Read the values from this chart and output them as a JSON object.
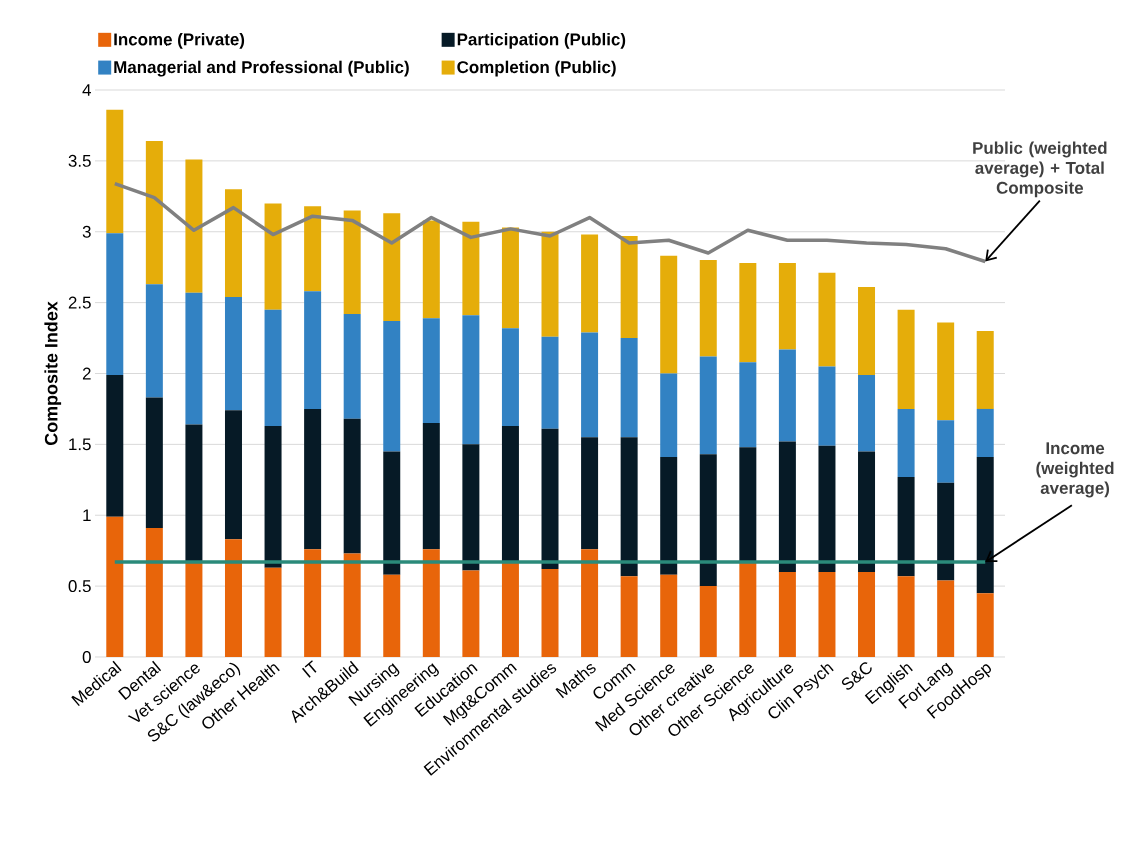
{
  "chart_data": {
    "type": "bar",
    "stacked": true,
    "ylabel": "Composite Index",
    "categories": [
      "Medical",
      "Dental",
      "Vet science",
      "S&C (law&eco)",
      "Other Health",
      "IT",
      "Arch&Build",
      "Nursing",
      "Engineering",
      "Education",
      "Mgt&Comm",
      "Environmental studies",
      "Maths",
      "Comm",
      "Med Science",
      "Other creative",
      "Other Science",
      "Agriculture",
      "Clin Psych",
      "S&C",
      "English",
      "ForLang",
      "FoodHosp"
    ],
    "series": [
      {
        "name": "Income (Private)",
        "color": "#e8650a",
        "values": [
          0.99,
          0.91,
          0.67,
          0.83,
          0.63,
          0.76,
          0.73,
          0.58,
          0.76,
          0.61,
          0.67,
          0.62,
          0.76,
          0.57,
          0.58,
          0.5,
          0.67,
          0.6,
          0.6,
          0.6,
          0.57,
          0.54,
          0.45
        ]
      },
      {
        "name": "Participation (Public)",
        "color": "#061a26",
        "values": [
          1.0,
          0.92,
          0.97,
          0.91,
          1.0,
          0.99,
          0.95,
          0.87,
          0.89,
          0.89,
          0.96,
          0.99,
          0.79,
          0.98,
          0.83,
          0.93,
          0.81,
          0.92,
          0.89,
          0.85,
          0.7,
          0.69,
          0.96
        ]
      },
      {
        "name": "Managerial and Professional (Public)",
        "color": "#3282c3",
        "values": [
          1.0,
          0.8,
          0.93,
          0.8,
          0.82,
          0.83,
          0.74,
          0.92,
          0.74,
          0.91,
          0.69,
          0.65,
          0.74,
          0.7,
          0.59,
          0.69,
          0.6,
          0.65,
          0.56,
          0.54,
          0.48,
          0.44,
          0.34
        ]
      },
      {
        "name": "Completion (Public)",
        "color": "#e5ad0a",
        "values": [
          0.87,
          1.01,
          0.94,
          0.76,
          0.75,
          0.6,
          0.73,
          0.76,
          0.69,
          0.66,
          0.71,
          0.74,
          0.69,
          0.72,
          0.83,
          0.68,
          0.7,
          0.61,
          0.66,
          0.62,
          0.7,
          0.69,
          0.55
        ]
      },
      {
        "name": "Public (weighted average) + Total Composite",
        "type": "line",
        "color": "#808080",
        "values": [
          3.34,
          3.24,
          3.01,
          3.17,
          2.98,
          3.11,
          3.08,
          2.92,
          3.1,
          2.96,
          3.02,
          2.97,
          3.1,
          2.92,
          2.94,
          2.85,
          3.01,
          2.94,
          2.94,
          2.92,
          2.91,
          2.88,
          2.79
        ]
      }
    ],
    "ref_lines": [
      {
        "axis": "y",
        "value": 0.67,
        "label": "Income (weighted average)",
        "color": "#2a8a7a"
      }
    ],
    "ylim": [
      0,
      4
    ],
    "yticks": [
      0,
      0.5,
      1,
      1.5,
      2,
      2.5,
      3,
      3.5,
      4
    ],
    "grid": "y",
    "legend": "top"
  }
}
